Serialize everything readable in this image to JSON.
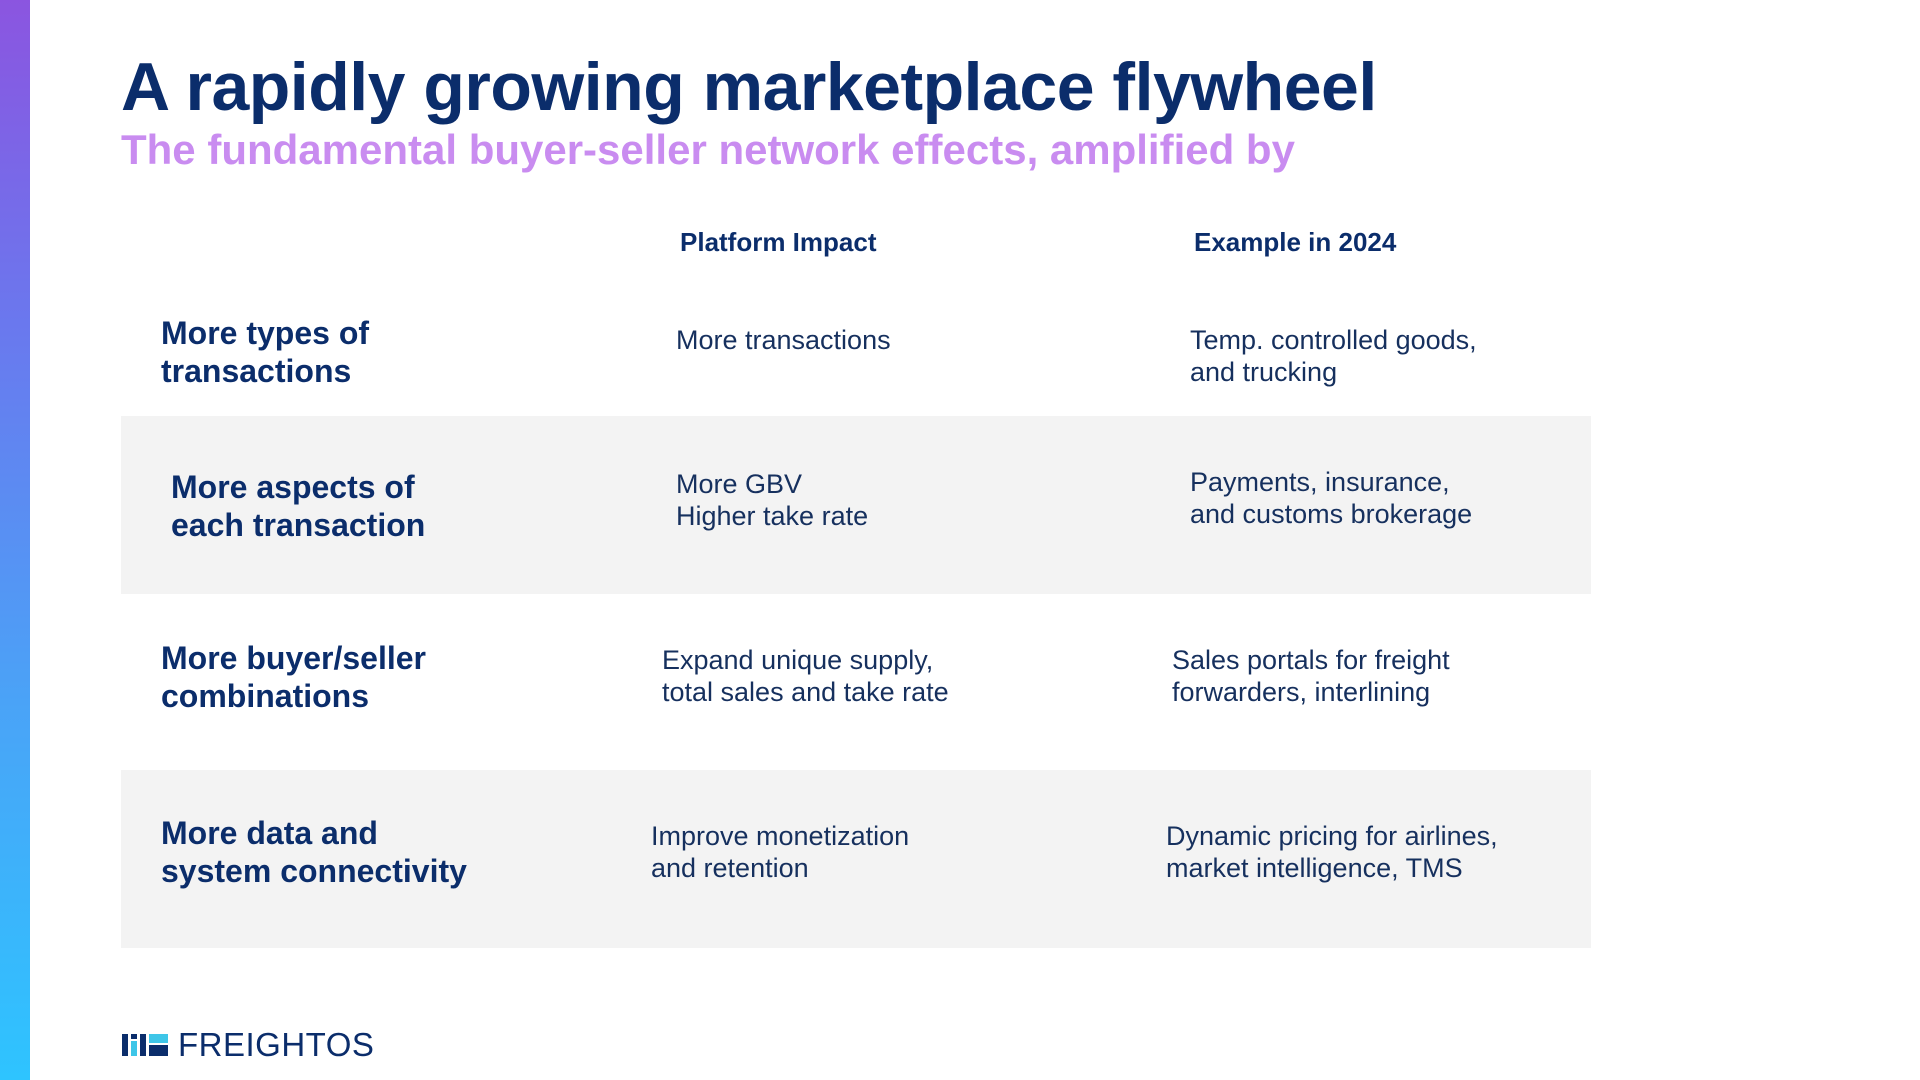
{
  "title": "A rapidly growing marketplace flywheel",
  "subtitle": "The fundamental buyer-seller network effects, amplified by",
  "columns": {
    "impact": "Platform Impact",
    "example": "Example in 2024"
  },
  "rows": [
    {
      "label": "More types of\ntransactions",
      "impact": "More transactions",
      "example": "Temp. controlled goods,\nand trucking"
    },
    {
      "label": "More aspects of\neach transaction",
      "impact": "More GBV\nHigher take rate",
      "example": "Payments, insurance,\nand customs brokerage"
    },
    {
      "label": "More buyer/seller\ncombinations",
      "impact": "Expand unique supply,\ntotal sales and take rate",
      "example": "Sales portals for freight\nforwarders, interlining"
    },
    {
      "label": "More data and\nsystem connectivity",
      "impact": "Improve monetization\nand retention",
      "example": "Dynamic pricing for airlines,\nmarket intelligence, TMS"
    }
  ],
  "logo": {
    "text": "FREIGHTOS",
    "icon": "freightos-logo-icon",
    "accent_color": "#3ec6e8",
    "primary_color": "#0b2d6b"
  },
  "colors": {
    "title": "#0b2d6b",
    "subtitle": "#c98cf0",
    "row_shading": "#f3f3f3"
  }
}
